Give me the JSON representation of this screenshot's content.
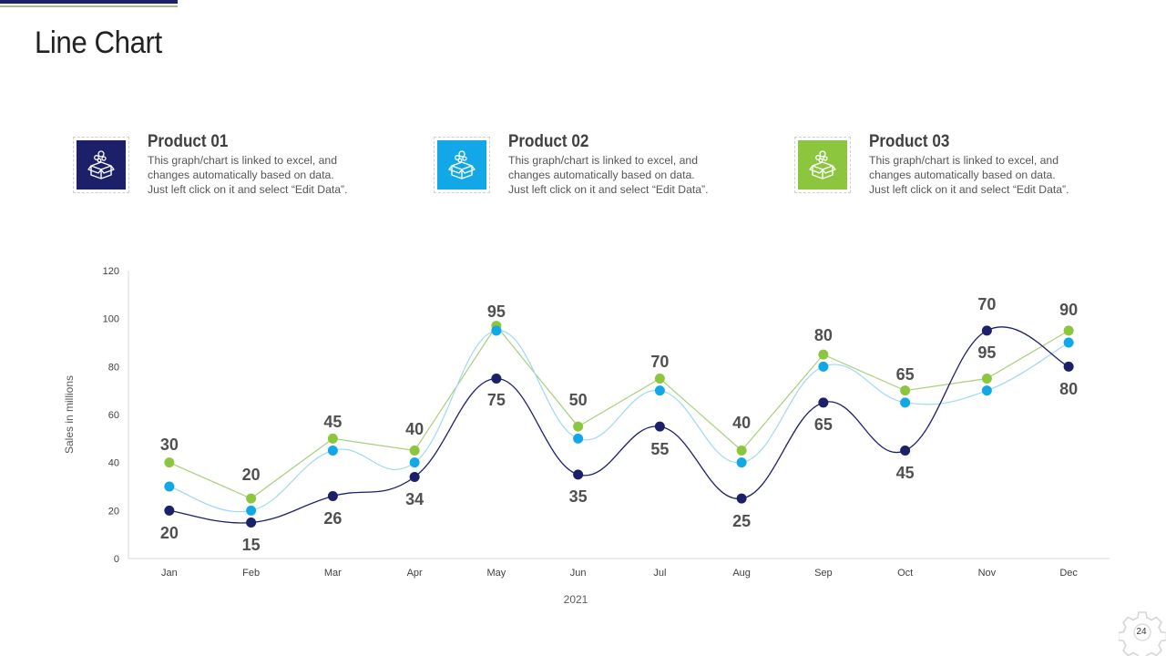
{
  "page": {
    "title": "Line Chart",
    "page_number": "24",
    "accent_colors": {
      "navy": "#1b2069",
      "blue": "#12a8e8",
      "green": "#8cc63f",
      "divider_green": "#a6b98c"
    }
  },
  "cards": [
    {
      "title": "Product 01",
      "icon": "open-box-icon",
      "color": "#1b2069",
      "desc": [
        "This graph/chart is linked to excel, and",
        "changes automatically based on data.",
        "Just left click on it and select “Edit Data”."
      ]
    },
    {
      "title": "Product 02",
      "icon": "open-box-icon",
      "color": "#12a8e8",
      "desc": [
        "This graph/chart is linked to excel, and",
        "changes automatically based on data.",
        "Just left click on it and select “Edit Data”."
      ]
    },
    {
      "title": "Product 03",
      "icon": "open-box-icon",
      "color": "#8cc63f",
      "desc": [
        "This graph/chart is linked to excel, and",
        "changes automatically based on data.",
        "Just left click on it and select “Edit Data”."
      ]
    }
  ],
  "chart_data": {
    "type": "line",
    "title": "",
    "xlabel": "2021",
    "ylabel": "Sales in millions",
    "categories": [
      "Jan",
      "Feb",
      "Mar",
      "Apr",
      "May",
      "Jun",
      "Jul",
      "Aug",
      "Sep",
      "Oct",
      "Nov",
      "Dec"
    ],
    "ylim": [
      0,
      120
    ],
    "yticks": [
      0,
      20,
      40,
      60,
      80,
      100,
      120
    ],
    "grid": false,
    "legend": "none",
    "series": [
      {
        "name": "Product 01",
        "color": "#1b2069",
        "line_color": "#1b2069",
        "smooth": true,
        "values": [
          20,
          15,
          26,
          34,
          75,
          35,
          55,
          25,
          65,
          45,
          95,
          80
        ]
      },
      {
        "name": "Product 02",
        "color": "#12a8e8",
        "line_color": "#9fd9f3",
        "smooth": true,
        "values": [
          30,
          20,
          45,
          40,
          95,
          50,
          70,
          40,
          80,
          65,
          70,
          90
        ]
      },
      {
        "name": "Product 03",
        "color": "#8cc63f",
        "line_color": "#a9cf7a",
        "smooth": false,
        "values": [
          40,
          25,
          50,
          45,
          97,
          55,
          75,
          45,
          85,
          70,
          75,
          95
        ]
      }
    ],
    "data_labels_upper": [
      "30",
      "20",
      "45",
      "40",
      "95",
      "50",
      "70",
      "40",
      "80",
      "65",
      "70",
      "90"
    ],
    "data_labels_lower": [
      "20",
      "15",
      "26",
      "34",
      "75",
      "35",
      "55",
      "25",
      "65",
      "45",
      "95",
      "80"
    ]
  }
}
